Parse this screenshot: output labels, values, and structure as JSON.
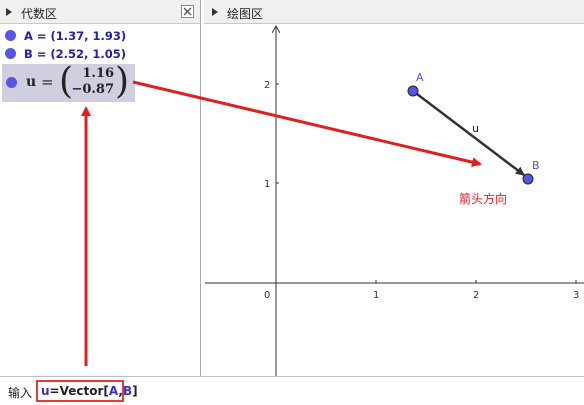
{
  "algebra": {
    "title": "代数区",
    "items": [
      {
        "name": "A",
        "text": "A = (1.37, 1.93)"
      },
      {
        "name": "B",
        "text": "B = (2.52, 1.05)"
      }
    ],
    "vector": {
      "name": "u",
      "eq": "=",
      "x": "1.16",
      "y": "−0.87"
    }
  },
  "graphics": {
    "title": "绘图区",
    "x_ticks": [
      "0",
      "1",
      "2",
      "3"
    ],
    "y_ticks": [
      "1",
      "2"
    ],
    "point_A_label": "A",
    "point_B_label": "B",
    "vector_label": "u",
    "annotation": "箭头方向",
    "colors": {
      "point": "#5555e6",
      "annotation": "#e02020",
      "vector": "#333333"
    }
  },
  "input": {
    "label": "输入",
    "value_u": "u",
    "value_eq": "=Vector[",
    "value_A": "A",
    "value_comma": ",",
    "value_B": "B",
    "value_close": "]"
  }
}
